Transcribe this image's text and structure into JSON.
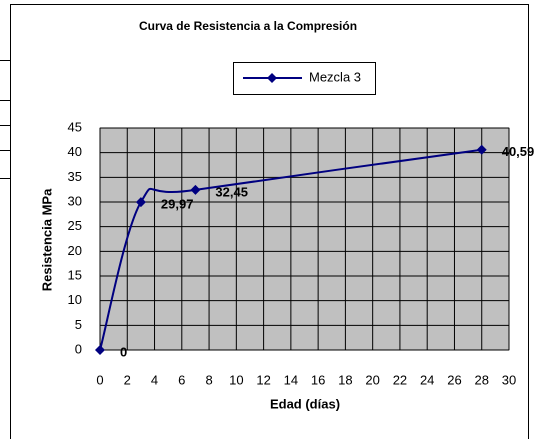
{
  "chart_data": {
    "type": "line",
    "title": "Curva de Resistencia a la Compresión",
    "x_label": "Edad (días)",
    "y_label": "Resistencia MPa",
    "x": [
      0,
      3,
      7,
      28
    ],
    "series": [
      {
        "name": "Mezcla 3",
        "color": "#000080",
        "values": [
          0,
          29.97,
          32.45,
          40.59
        ],
        "value_labels": [
          "0",
          "29,97",
          "32,45",
          "40,59"
        ]
      }
    ],
    "xlim": [
      0,
      30
    ],
    "xticks": [
      0,
      2,
      4,
      6,
      8,
      10,
      12,
      14,
      16,
      18,
      20,
      22,
      24,
      26,
      28,
      30
    ],
    "ylim": [
      0,
      45
    ],
    "yticks": [
      0,
      5,
      10,
      15,
      20,
      25,
      30,
      35,
      40,
      45
    ],
    "grid": true,
    "smooth": true,
    "legend": "top"
  }
}
